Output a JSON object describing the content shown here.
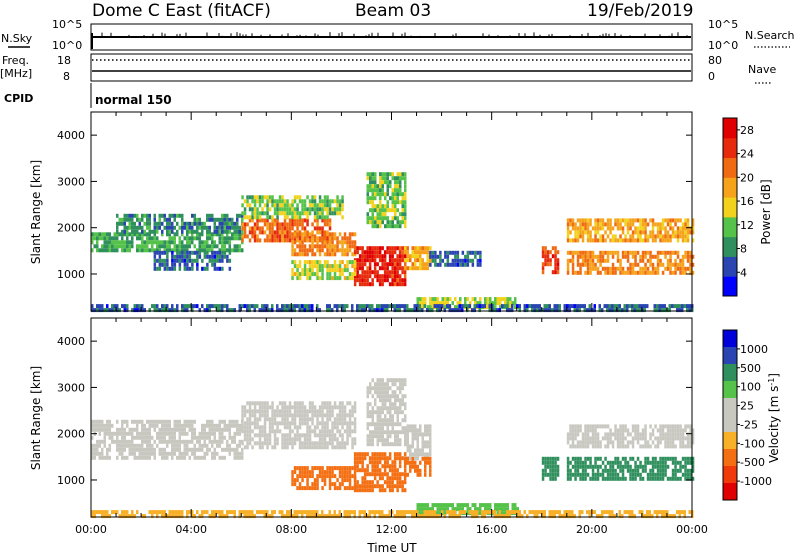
{
  "header": {
    "station": "Dome C East (fitACF)",
    "beam": "Beam 03",
    "date": "19/Feb/2019"
  },
  "status_panels": {
    "nsky_label": "N.Sky",
    "nsky_top": "10^5",
    "nsky_bottom": "10^0",
    "nsearch_label": "N.Search",
    "nsearch_top": "10^5",
    "nsearch_bottom": "10^0",
    "freq_label_line1": "Freq.",
    "freq_label_line2": "[MHz]",
    "freq_top": "18",
    "freq_bottom": "8",
    "nave_label": "Nave",
    "nave_top": "80",
    "nave_bottom": "0",
    "cpid_label": "CPID",
    "cpid_value": "normal 150"
  },
  "colors": {
    "power_scale": [
      "#0000ff",
      "#2a45b2",
      "#2f8f5d",
      "#55c24a",
      "#f2d21d",
      "#f6a21a",
      "#f06a12",
      "#e82a0c",
      "#e00000"
    ],
    "velocity_scale": [
      "#e00000",
      "#f03a0a",
      "#f46e12",
      "#f7b028",
      "#c8c8c0",
      "#c8c8c0",
      "#55c24a",
      "#2f8f5d",
      "#2a45b2",
      "#0000d8"
    ],
    "ground_scatter": "#c8c8c0"
  },
  "chart_data": [
    {
      "type": "heatmap",
      "name": "power",
      "xlabel": "",
      "ylabel": "Slant Range [km]",
      "xlim": [
        0,
        24
      ],
      "ylim": [
        200,
        4500
      ],
      "y_ticks": [
        "1000",
        "2000",
        "3000",
        "4000"
      ],
      "colorbar": {
        "label": "Power [dB]",
        "ticks": [
          "4",
          "8",
          "12",
          "16",
          "20",
          "24",
          "28"
        ],
        "range": [
          0,
          30
        ]
      },
      "regions": [
        {
          "t0": 0.0,
          "t1": 6.0,
          "r0": 1500,
          "r1": 1900,
          "value": 10
        },
        {
          "t0": 1.0,
          "t1": 6.0,
          "r0": 1950,
          "r1": 2300,
          "value": 8
        },
        {
          "t0": 2.5,
          "t1": 5.5,
          "r0": 1100,
          "r1": 1500,
          "value": 6
        },
        {
          "t0": 6.0,
          "t1": 9.5,
          "r0": 1700,
          "r1": 2200,
          "value": 22
        },
        {
          "t0": 6.0,
          "t1": 10.0,
          "r0": 2200,
          "r1": 2700,
          "value": 12
        },
        {
          "t0": 8.0,
          "t1": 10.5,
          "r0": 1400,
          "r1": 1900,
          "value": 20
        },
        {
          "t0": 10.5,
          "t1": 12.5,
          "r0": 800,
          "r1": 1600,
          "value": 26
        },
        {
          "t0": 12.5,
          "t1": 13.5,
          "r0": 1100,
          "r1": 1600,
          "value": 18
        },
        {
          "t0": 11.0,
          "t1": 12.5,
          "r0": 2000,
          "r1": 3200,
          "value": 12
        },
        {
          "t0": 8.0,
          "t1": 10.5,
          "r0": 900,
          "r1": 1300,
          "value": 14
        },
        {
          "t0": 13.5,
          "t1": 15.5,
          "r0": 1200,
          "r1": 1500,
          "value": 6
        },
        {
          "t0": 13.0,
          "t1": 17.0,
          "r0": 250,
          "r1": 500,
          "value": 14
        },
        {
          "t0": 18.0,
          "t1": 18.6,
          "r0": 1000,
          "r1": 1600,
          "value": 24
        },
        {
          "t0": 19.0,
          "t1": 24.0,
          "r0": 1050,
          "r1": 1500,
          "value": 20
        },
        {
          "t0": 19.0,
          "t1": 24.0,
          "r0": 1700,
          "r1": 2200,
          "value": 18
        },
        {
          "t0": 0.0,
          "t1": 24.0,
          "r0": 200,
          "r1": 350,
          "value": 6
        }
      ]
    },
    {
      "type": "heatmap",
      "name": "velocity",
      "xlabel": "Time UT",
      "ylabel": "Slant Range [km]",
      "xlim": [
        0,
        24
      ],
      "ylim": [
        200,
        4500
      ],
      "x_ticks": [
        "00:00",
        "04:00",
        "08:00",
        "12:00",
        "16:00",
        "20:00",
        "00:00"
      ],
      "y_ticks": [
        "1000",
        "2000",
        "3000",
        "4000"
      ],
      "colorbar": {
        "label": "Velocity [m s^-1]",
        "ticks": [
          "1000",
          "500",
          "100",
          "25",
          "-25",
          "-100",
          "-500",
          "-1000"
        ]
      },
      "regions": [
        {
          "t0": 0.0,
          "t1": 6.0,
          "r0": 1500,
          "r1": 2300,
          "value": 0
        },
        {
          "t0": 6.0,
          "t1": 10.5,
          "r0": 1700,
          "r1": 2700,
          "value": 0
        },
        {
          "t0": 11.0,
          "t1": 12.5,
          "r0": 1800,
          "r1": 3200,
          "value": 0
        },
        {
          "t0": 12.5,
          "t1": 13.5,
          "r0": 1500,
          "r1": 2200,
          "value": 0
        },
        {
          "t0": 8.0,
          "t1": 10.5,
          "r0": 800,
          "r1": 1300,
          "value": -300
        },
        {
          "t0": 10.5,
          "t1": 12.5,
          "r0": 800,
          "r1": 1600,
          "value": -300
        },
        {
          "t0": 12.5,
          "t1": 13.5,
          "r0": 1100,
          "r1": 1500,
          "value": -400
        },
        {
          "t0": 18.0,
          "t1": 18.6,
          "r0": 1000,
          "r1": 1500,
          "value": 300
        },
        {
          "t0": 19.0,
          "t1": 24.0,
          "r0": 1000,
          "r1": 1500,
          "value": 400
        },
        {
          "t0": 19.0,
          "t1": 24.0,
          "r0": 1700,
          "r1": 2200,
          "value": 0
        },
        {
          "t0": 13.0,
          "t1": 17.0,
          "r0": 250,
          "r1": 500,
          "value": 60
        },
        {
          "t0": 0.0,
          "t1": 24.0,
          "r0": 200,
          "r1": 350,
          "value": -60
        }
      ]
    }
  ]
}
